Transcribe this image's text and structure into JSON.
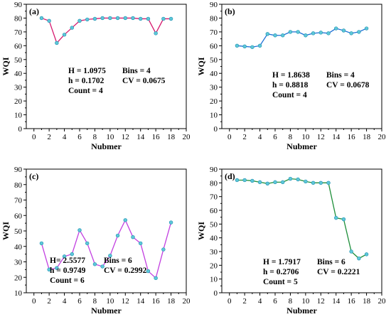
{
  "colors": {
    "marker_fill": "#5ec8d8",
    "marker_stroke": "#1f8fb0",
    "axis": "#000000"
  },
  "chart_data": [
    {
      "type": "line",
      "panel_label": "(a)",
      "xlabel": "Nubmer",
      "ylabel": "WQI",
      "xlim": [
        -1,
        20
      ],
      "ylim": [
        0,
        90
      ],
      "xticks": [
        "0",
        "2",
        "4",
        "6",
        "8",
        "10",
        "12",
        "14",
        "16",
        "18",
        "20"
      ],
      "yticks": [
        "0",
        "10",
        "20",
        "30",
        "40",
        "50",
        "60",
        "70",
        "80",
        "90"
      ],
      "line_color": "#d6196e",
      "x": [
        1,
        2,
        3,
        4,
        5,
        6,
        7,
        8,
        9,
        10,
        11,
        12,
        13,
        14,
        15,
        16,
        17,
        18
      ],
      "series": [
        {
          "values": [
            80,
            78,
            62,
            68,
            73,
            78,
            79,
            79.5,
            80,
            80,
            80,
            80,
            80,
            79.5,
            79.5,
            69,
            79.5,
            79.5
          ]
        }
      ],
      "stats": {
        "line1a": "H = 1.0975",
        "line1b": "Bins = 4",
        "line2a": "h = 0.1702",
        "line2b": "CV = 0.0675",
        "line3": "Count = 4"
      }
    },
    {
      "type": "line",
      "panel_label": "(b)",
      "xlabel": "Nubmer",
      "ylabel": "WQI",
      "xlim": [
        -1,
        20
      ],
      "ylim": [
        0,
        90
      ],
      "xticks": [
        "0",
        "2",
        "4",
        "6",
        "8",
        "10",
        "12",
        "14",
        "16",
        "18",
        "20"
      ],
      "yticks": [
        "0",
        "10",
        "20",
        "30",
        "40",
        "50",
        "60",
        "70",
        "80",
        "90"
      ],
      "line_color": "#1a6fd6",
      "x": [
        1,
        2,
        3,
        4,
        5,
        6,
        7,
        8,
        9,
        10,
        11,
        12,
        13,
        14,
        15,
        16,
        17,
        18
      ],
      "series": [
        {
          "values": [
            60,
            59.5,
            59,
            60,
            68.5,
            67.5,
            67.5,
            70,
            70,
            67.5,
            69,
            69.5,
            69,
            72.5,
            71,
            69,
            70,
            72.5
          ]
        }
      ],
      "stats": {
        "line1a": "H = 1.8638",
        "line1b": "Bins = 4",
        "line2a": "h = 0.8818",
        "line2b": "CV = 0.0678",
        "line3": "Count = 4"
      }
    },
    {
      "type": "line",
      "panel_label": "(c)",
      "xlabel": "Nubmer",
      "ylabel": "WQI",
      "xlim": [
        -1,
        20
      ],
      "ylim": [
        10,
        90
      ],
      "xticks": [
        "0",
        "2",
        "4",
        "6",
        "8",
        "10",
        "12",
        "14",
        "16",
        "18",
        "20"
      ],
      "yticks": [
        "10",
        "20",
        "30",
        "40",
        "50",
        "60",
        "70",
        "80",
        "90"
      ],
      "line_color": "#c23fe0",
      "x": [
        1,
        2,
        3,
        4,
        5,
        6,
        7,
        8,
        9,
        10,
        11,
        12,
        13,
        14,
        15,
        16,
        17,
        18
      ],
      "series": [
        {
          "values": [
            42,
            25,
            26,
            33.5,
            35,
            50.5,
            42,
            28.5,
            27,
            34,
            47,
            57,
            46,
            42,
            24,
            19.5,
            38,
            55.5
          ]
        }
      ],
      "stats": {
        "line1a": "H= 2.5577",
        "line1b": "Bins = 6",
        "line2a": "h = 0.9749",
        "line2b": "CV = 0.2992",
        "line3": "Count = 6"
      }
    },
    {
      "type": "line",
      "panel_label": "(d)",
      "xlabel": "Nubmer",
      "ylabel": "WQI",
      "xlim": [
        -1,
        20
      ],
      "ylim": [
        0,
        90
      ],
      "xticks": [
        "0",
        "2",
        "4",
        "6",
        "8",
        "10",
        "12",
        "14",
        "16",
        "18",
        "20"
      ],
      "yticks": [
        "0",
        "10",
        "20",
        "30",
        "40",
        "50",
        "60",
        "70",
        "80",
        "90"
      ],
      "line_color": "#1f8f3a",
      "x": [
        1,
        2,
        3,
        4,
        5,
        6,
        7,
        8,
        9,
        10,
        11,
        12,
        13,
        14,
        15,
        16,
        17,
        18
      ],
      "series": [
        {
          "values": [
            82,
            82,
            81.5,
            80.5,
            79.5,
            80.5,
            80.5,
            83,
            82.5,
            81,
            80,
            80,
            80,
            54.5,
            53.5,
            30,
            25,
            28
          ]
        }
      ],
      "stats": {
        "line1a": "H = 1.7917",
        "line1b": "Bins = 6",
        "line2a": "h = 0.2706",
        "line2b": "CV = 0.2221",
        "line3": "Count = 5"
      }
    }
  ]
}
